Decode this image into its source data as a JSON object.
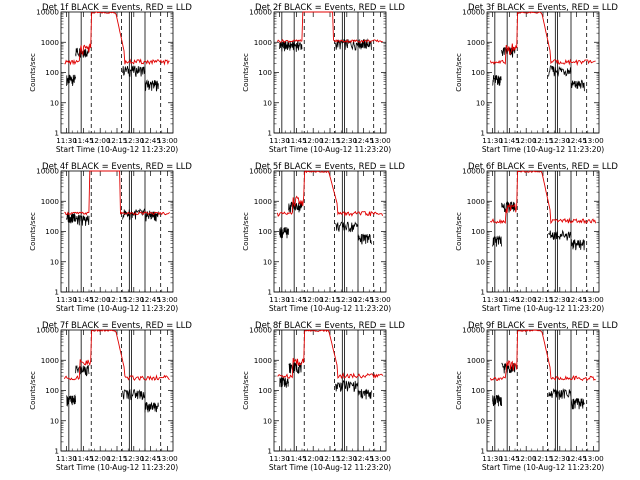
{
  "panel_title_template": "Det {n}f BLACK = Events, RED = LLD",
  "chart_data": [
    {
      "type": "line",
      "title": "Det 1f BLACK = Events, RED = LLD",
      "xlabel": "Start Time (10-Aug-12 11:23:20)",
      "ylabel": "Counts/sec",
      "x_ticks": [
        "11:30",
        "11:45",
        "12:00",
        "12:15",
        "12:30",
        "12:45",
        "13:00"
      ],
      "y_ticks": [
        "1",
        "10",
        "100",
        "1000",
        "10000"
      ],
      "y_scale": "log",
      "ylim": [
        1,
        10000
      ],
      "red_baseline": 220,
      "black_level": [
        60,
        500,
        900,
        120,
        40
      ],
      "red_flat_mid": false
    },
    {
      "type": "line",
      "title": "Det 2f BLACK = Events, RED = LLD",
      "xlabel": "Start Time (10-Aug-12 11:23:20)",
      "ylabel": "Counts/sec",
      "x_ticks": [
        "11:30",
        "11:45",
        "12:00",
        "12:15",
        "12:30",
        "12:45",
        "13:00"
      ],
      "y_ticks": [
        "1",
        "10",
        "100",
        "1000",
        "10000"
      ],
      "y_scale": "log",
      "ylim": [
        1,
        10000
      ],
      "red_baseline": 1100,
      "black_level": [
        800,
        800,
        900,
        900,
        900
      ],
      "red_flat_mid": true
    },
    {
      "type": "line",
      "title": "Det 3f BLACK = Events, RED = LLD",
      "xlabel": "Start Time (10-Aug-12 11:23:20)",
      "ylabel": "Counts/sec",
      "x_ticks": [
        "11:30",
        "11:45",
        "12:00",
        "12:15",
        "12:30",
        "12:45",
        "13:00"
      ],
      "y_ticks": [
        "1",
        "10",
        "100",
        "1000",
        "10000"
      ],
      "y_scale": "log",
      "ylim": [
        1,
        10000
      ],
      "red_baseline": 220,
      "black_level": [
        60,
        500,
        900,
        120,
        40
      ],
      "red_flat_mid": false
    },
    {
      "type": "line",
      "title": "Det 4f BLACK = Events, RED = LLD",
      "xlabel": "Start Time (10-Aug-12 11:23:20)",
      "ylabel": "Counts/sec",
      "x_ticks": [
        "11:30",
        "11:45",
        "12:00",
        "12:15",
        "12:30",
        "12:45",
        "13:00"
      ],
      "y_ticks": [
        "1",
        "10",
        "100",
        "1000",
        "10000"
      ],
      "y_scale": "log",
      "ylim": [
        1,
        10000
      ],
      "red_baseline": 400,
      "black_level": [
        300,
        250,
        900,
        400,
        350
      ],
      "red_flat_mid": true
    },
    {
      "type": "line",
      "title": "Det 5f BLACK = Events, RED = LLD",
      "xlabel": "Start Time (10-Aug-12 11:23:20)",
      "ylabel": "Counts/sec",
      "x_ticks": [
        "11:30",
        "11:45",
        "12:00",
        "12:15",
        "12:30",
        "12:45",
        "13:00"
      ],
      "y_ticks": [
        "1",
        "10",
        "100",
        "1000",
        "10000"
      ],
      "y_scale": "log",
      "ylim": [
        1,
        10000
      ],
      "red_baseline": 380,
      "black_level": [
        100,
        700,
        900,
        150,
        60
      ],
      "red_flat_mid": false
    },
    {
      "type": "line",
      "title": "Det 6f BLACK = Events, RED = LLD",
      "xlabel": "Start Time (10-Aug-12 11:23:20)",
      "ylabel": "Counts/sec",
      "x_ticks": [
        "11:30",
        "11:45",
        "12:00",
        "12:15",
        "12:30",
        "12:45",
        "13:00"
      ],
      "y_ticks": [
        "1",
        "10",
        "100",
        "1000",
        "10000"
      ],
      "y_scale": "log",
      "ylim": [
        1,
        10000
      ],
      "red_baseline": 220,
      "black_level": [
        50,
        700,
        900,
        80,
        40
      ],
      "red_flat_mid": false
    },
    {
      "type": "line",
      "title": "Det 7f BLACK = Events, RED = LLD",
      "xlabel": "Start Time (10-Aug-12 11:23:20)",
      "ylabel": "Counts/sec",
      "x_ticks": [
        "11:30",
        "11:45",
        "12:00",
        "12:15",
        "12:30",
        "12:45",
        "13:00"
      ],
      "y_ticks": [
        "1",
        "10",
        "100",
        "1000",
        "10000"
      ],
      "y_scale": "log",
      "ylim": [
        1,
        10000
      ],
      "red_baseline": 260,
      "black_level": [
        50,
        500,
        900,
        80,
        30
      ],
      "red_flat_mid": false
    },
    {
      "type": "line",
      "title": "Det 8f BLACK = Events, RED = LLD",
      "xlabel": "Start Time (10-Aug-12 11:23:20)",
      "ylabel": "Counts/sec",
      "x_ticks": [
        "11:30",
        "11:45",
        "12:00",
        "12:15",
        "12:30",
        "12:45",
        "13:00"
      ],
      "y_ticks": [
        "1",
        "10",
        "100",
        "1000",
        "10000"
      ],
      "y_scale": "log",
      "ylim": [
        1,
        10000
      ],
      "red_baseline": 300,
      "black_level": [
        200,
        600,
        900,
        150,
        80
      ],
      "red_flat_mid": false
    },
    {
      "type": "line",
      "title": "Det 9f BLACK = Events, RED = LLD",
      "xlabel": "Start Time (10-Aug-12 11:23:20)",
      "ylabel": "Counts/sec",
      "x_ticks": [
        "11:30",
        "11:45",
        "12:00",
        "12:15",
        "12:30",
        "12:45",
        "13:00"
      ],
      "y_ticks": [
        "1",
        "10",
        "100",
        "1000",
        "10000"
      ],
      "y_scale": "log",
      "ylim": [
        1,
        10000
      ],
      "red_baseline": 250,
      "black_level": [
        50,
        600,
        900,
        80,
        40
      ],
      "red_flat_mid": false
    }
  ],
  "colors": {
    "events": "#000000",
    "lld": "#e00000",
    "axis": "#000000"
  }
}
